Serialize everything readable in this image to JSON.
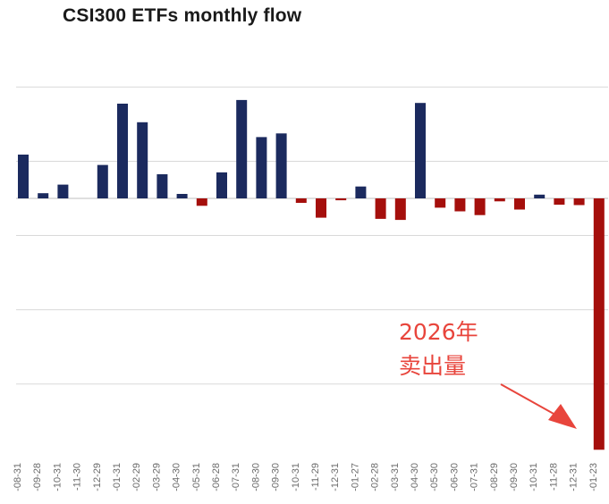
{
  "chart_data": {
    "type": "bar",
    "title": "CSI300 ETFs monthly flow",
    "xlabel": "",
    "ylabel": "",
    "ylim": [
      -680,
      300
    ],
    "gridlines": [
      -500,
      -300,
      -100,
      100,
      300
    ],
    "grid": true,
    "legend": "none",
    "colors": {
      "positive": "#1b2a5e",
      "negative": "#a50f0c",
      "annotation": "#e8453c"
    },
    "categories": [
      "-08-31",
      "-09-28",
      "-10-31",
      "-11-30",
      "-12-29",
      "-01-31",
      "-02-29",
      "-03-29",
      "-04-30",
      "-05-31",
      "-06-28",
      "-07-31",
      "-08-30",
      "-09-30",
      "-10-31",
      "-11-29",
      "-12-31",
      "-01-27",
      "-02-28",
      "-03-31",
      "-04-30",
      "-05-30",
      "-06-30",
      "-07-31",
      "-08-29",
      "-09-30",
      "-10-31",
      "-11-28",
      "-12-31",
      "-01-23"
    ],
    "values": [
      118,
      14,
      37,
      0,
      90,
      255,
      205,
      65,
      12,
      -20,
      70,
      265,
      165,
      175,
      -12,
      -52,
      -5,
      32,
      -55,
      -58,
      257,
      -25,
      -35,
      -45,
      -8,
      -30,
      10,
      -17,
      -18,
      -677
    ],
    "annotation": {
      "lines": [
        "2026年",
        "卖出量"
      ]
    }
  }
}
